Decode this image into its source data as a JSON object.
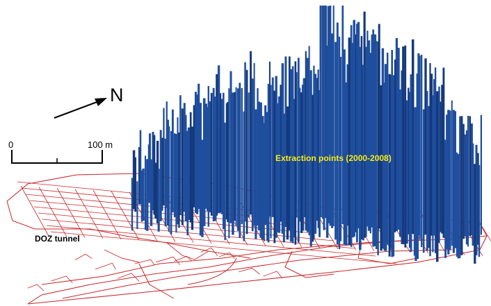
{
  "labels": {
    "north": "N",
    "scale_start": "0",
    "scale_end": "100 m",
    "tunnel": "DOZ tunnel",
    "extraction": "Extraction points (2000-2008)"
  },
  "colors": {
    "bars": "#1f4e9e",
    "bars_dark": "#15397a",
    "tunnel_lines": "#c8272a",
    "text_highlight": "#f2ef1e",
    "text": "#000000"
  },
  "figure": {
    "bar_count_estimate": 320,
    "bar_height_profile": "low on the left, rising toward the center-right, tallest near the right of center"
  }
}
